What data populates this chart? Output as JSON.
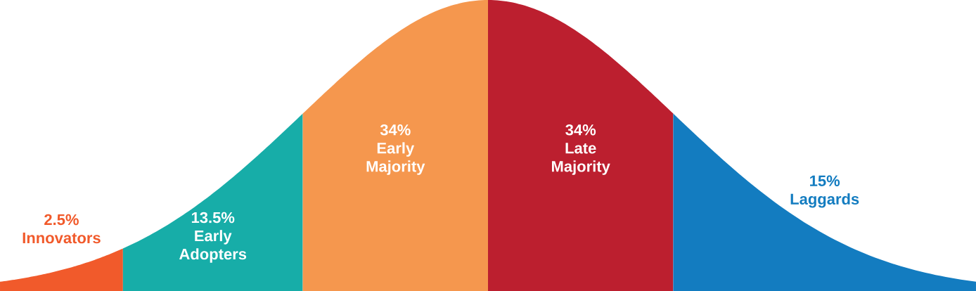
{
  "chart_data": {
    "type": "other",
    "categories": [
      "Innovators",
      "Early Adopters",
      "Early Majority",
      "Late Majority",
      "Laggards"
    ],
    "values": [
      2.5,
      13.5,
      34,
      34,
      15
    ],
    "value_labels": [
      "2.5%",
      "13.5%",
      "34%",
      "34%",
      "15%"
    ],
    "colors": [
      "#f15a2b",
      "#17ada8",
      "#f5974e",
      "#bc1f2f",
      "#137cc0"
    ]
  }
}
